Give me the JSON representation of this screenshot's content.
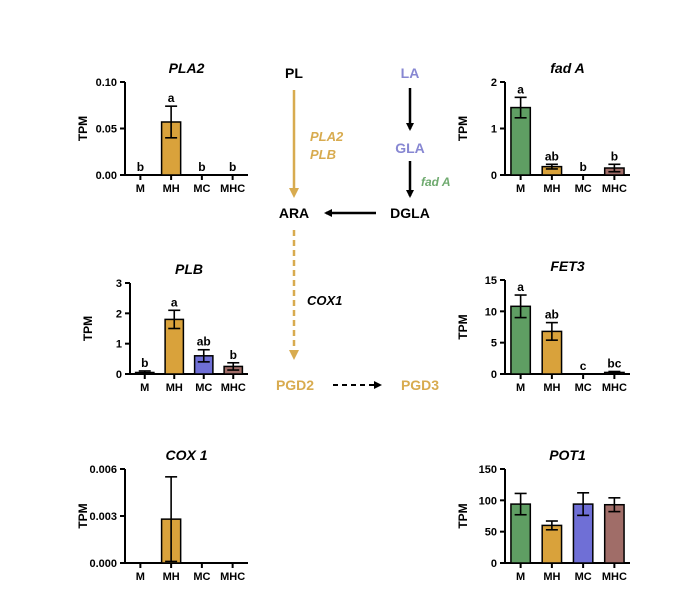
{
  "colors": {
    "M": "#5f9e63",
    "MH": "#d9a23b",
    "MC": "#6f6fd6",
    "MHC": "#a06d68",
    "pathway_gold": "#d8ab4f",
    "pathway_lavender": "#8787d2",
    "fadA_green": "#6faa6f",
    "black": "#000000"
  },
  "pathway": {
    "nodes": {
      "pl": "PL",
      "la": "LA",
      "gla": "GLA",
      "ara": "ARA",
      "dgla": "DGLA",
      "pgd2": "PGD2",
      "pgd3": "PGD3"
    },
    "enzymes": {
      "pla2": "PLA2",
      "plb": "PLB",
      "fada": "fad A",
      "cox1": "COX1"
    }
  },
  "chart_data": [
    {
      "id": "pla2",
      "type": "bar",
      "title": "PLA2",
      "ylabel": "TPM",
      "categories": [
        "M",
        "MH",
        "MC",
        "MHC"
      ],
      "values": [
        0.0,
        0.057,
        0.0,
        0.0
      ],
      "errors": [
        0.0,
        0.017,
        0.0,
        0.0
      ],
      "letters": [
        "b",
        "a",
        "b",
        "b"
      ],
      "ylim": [
        0,
        0.1
      ],
      "yticks": [
        0,
        0.05,
        0.1
      ],
      "ytick_labels": [
        "0.00",
        "0.05",
        "0.10"
      ],
      "colors": [
        "#5f9e63",
        "#d9a23b",
        "#6f6fd6",
        "#a06d68"
      ]
    },
    {
      "id": "fada",
      "type": "bar",
      "title": "fad A",
      "ylabel": "TPM",
      "categories": [
        "M",
        "MH",
        "MC",
        "MHC"
      ],
      "values": [
        1.45,
        0.18,
        0.0,
        0.15
      ],
      "errors": [
        0.22,
        0.05,
        0.0,
        0.08
      ],
      "letters": [
        "a",
        "ab",
        "b",
        "b"
      ],
      "ylim": [
        0,
        2
      ],
      "yticks": [
        0,
        1,
        2
      ],
      "ytick_labels": [
        "0",
        "1",
        "2"
      ],
      "colors": [
        "#5f9e63",
        "#d9a23b",
        "#6f6fd6",
        "#a06d68"
      ]
    },
    {
      "id": "plb",
      "type": "bar",
      "title": "PLB",
      "ylabel": "TPM",
      "categories": [
        "M",
        "MH",
        "MC",
        "MHC"
      ],
      "values": [
        0.05,
        1.8,
        0.6,
        0.25
      ],
      "errors": [
        0.05,
        0.3,
        0.2,
        0.12
      ],
      "letters": [
        "b",
        "a",
        "ab",
        "b"
      ],
      "ylim": [
        0,
        3
      ],
      "yticks": [
        0,
        1,
        2,
        3
      ],
      "ytick_labels": [
        "0",
        "1",
        "2",
        "3"
      ],
      "colors": [
        "#5f9e63",
        "#d9a23b",
        "#6f6fd6",
        "#a06d68"
      ]
    },
    {
      "id": "fet3",
      "type": "bar",
      "title": "FET3",
      "ylabel": "TPM",
      "categories": [
        "M",
        "MH",
        "MC",
        "MHC"
      ],
      "values": [
        10.8,
        6.8,
        0.0,
        0.25
      ],
      "errors": [
        1.8,
        1.4,
        0.0,
        0.15
      ],
      "letters": [
        "a",
        "ab",
        "c",
        "bc"
      ],
      "ylim": [
        0,
        15
      ],
      "yticks": [
        0,
        5,
        10,
        15
      ],
      "ytick_labels": [
        "0",
        "5",
        "10",
        "15"
      ],
      "colors": [
        "#5f9e63",
        "#d9a23b",
        "#6f6fd6",
        "#a06d68"
      ]
    },
    {
      "id": "cox1",
      "type": "bar",
      "title": "COX 1",
      "ylabel": "TPM",
      "categories": [
        "M",
        "MH",
        "MC",
        "MHC"
      ],
      "values": [
        0.0,
        0.0028,
        0.0,
        0.0
      ],
      "errors": [
        0.0,
        0.0027,
        0.0,
        0.0
      ],
      "letters": [
        "",
        "",
        "",
        ""
      ],
      "ylim": [
        0,
        0.006
      ],
      "yticks": [
        0,
        0.003,
        0.006
      ],
      "ytick_labels": [
        "0.000",
        "0.003",
        "0.006"
      ],
      "colors": [
        "#5f9e63",
        "#d9a23b",
        "#6f6fd6",
        "#a06d68"
      ]
    },
    {
      "id": "pot1",
      "type": "bar",
      "title": "POT1",
      "ylabel": "TPM",
      "categories": [
        "M",
        "MH",
        "MC",
        "MHC"
      ],
      "values": [
        94,
        60,
        94,
        93
      ],
      "errors": [
        17,
        7,
        18,
        11
      ],
      "letters": [
        "",
        "",
        "",
        ""
      ],
      "ylim": [
        0,
        150
      ],
      "yticks": [
        0,
        50,
        100,
        150
      ],
      "ytick_labels": [
        "0",
        "50",
        "100",
        "150"
      ],
      "colors": [
        "#5f9e63",
        "#d9a23b",
        "#6f6fd6",
        "#a06d68"
      ]
    }
  ]
}
